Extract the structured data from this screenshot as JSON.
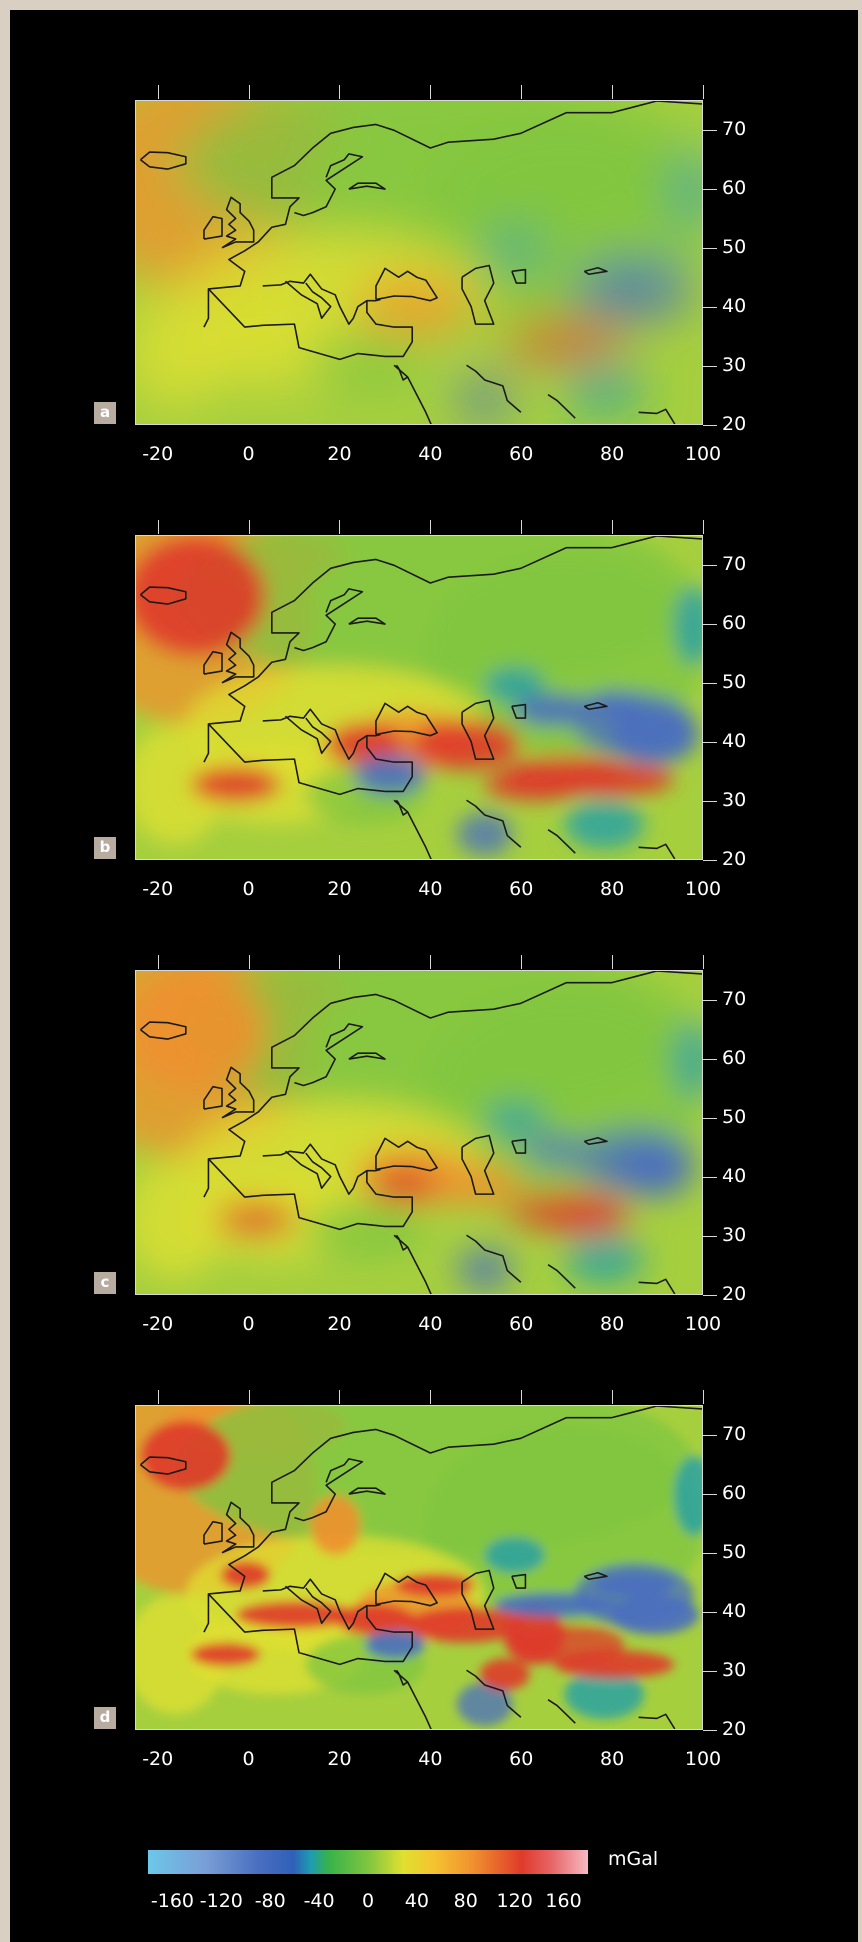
{
  "unit_label": "mGal",
  "x_axis": {
    "ticks": [
      -20,
      0,
      20,
      40,
      60,
      80,
      100
    ],
    "range": [
      -25,
      100
    ]
  },
  "y_axis": {
    "ticks": [
      70,
      60,
      50,
      40,
      30,
      20
    ],
    "range": [
      20,
      75
    ]
  },
  "colorbar": {
    "ticks": [
      -160,
      -120,
      -80,
      -40,
      0,
      40,
      80,
      120,
      160
    ],
    "range": [
      -180,
      180
    ],
    "colors": [
      "#6cc7ea",
      "#4a6fc0",
      "#1e9cb0",
      "#7fc540",
      "#e0e030",
      "#f0902e",
      "#df3a2a",
      "#f6b9c2"
    ]
  },
  "panels": [
    {
      "label": "a",
      "detail": "very smooth"
    },
    {
      "label": "b",
      "detail": "medium"
    },
    {
      "label": "c",
      "detail": "smooth"
    },
    {
      "label": "d",
      "detail": "high"
    }
  ]
}
